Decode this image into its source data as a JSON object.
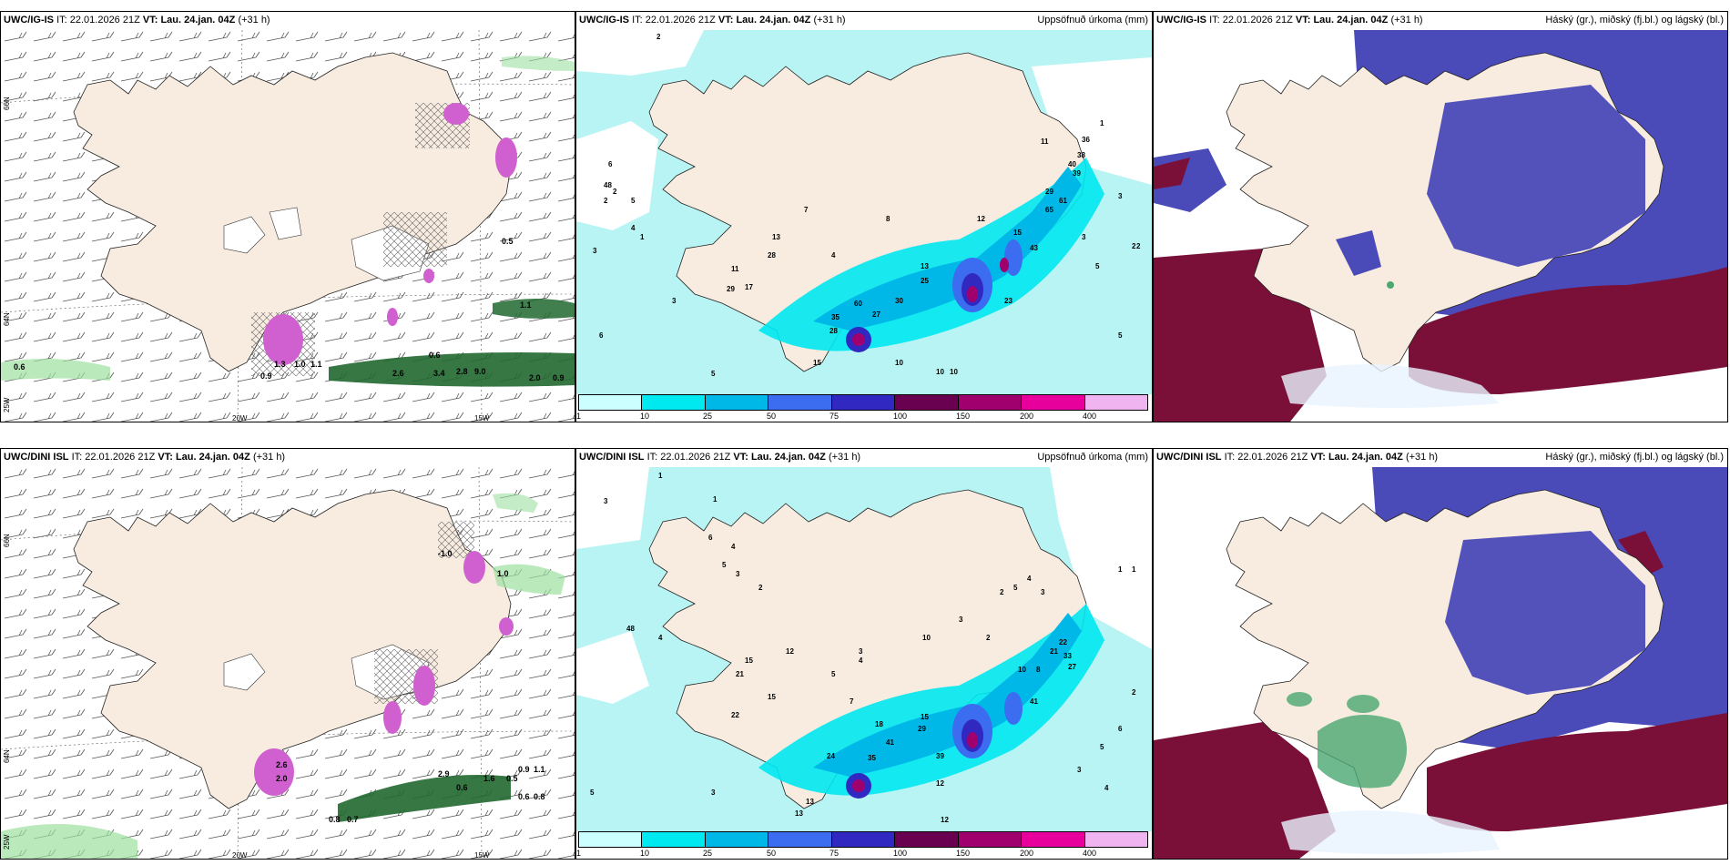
{
  "rows": [
    {
      "model": "UWC/IG-IS",
      "it_label": "IT:",
      "it_value": "22.01.2026 21Z",
      "vt_label": "VT:",
      "vt_value": "Lau. 24.jan. 04Z",
      "lead": "(+31 h)"
    },
    {
      "model": "UWC/DINI ISL",
      "it_label": "IT:",
      "it_value": "22.01.2026 21Z",
      "vt_label": "VT:",
      "vt_value": "Lau. 24.jan. 04Z",
      "lead": "(+31 h)"
    }
  ],
  "precip_title": "Uppsöfnuð úrkoma (mm)",
  "cloud_title": "Háský (gr.), miðský (fj.bl.) og lágský (bl.)",
  "axis_labels": {
    "lon_20w": "20W",
    "lon_15w": "15W",
    "lat_66n": "66N",
    "lat_64n": "64N",
    "lat_25w": "25W"
  },
  "colorbar": {
    "labels": [
      "1",
      "10",
      "25",
      "50",
      "75",
      "100",
      "150",
      "200",
      "400"
    ],
    "colors": [
      "#ccffff",
      "#00e8f0",
      "#00b8e8",
      "#3c6cf0",
      "#3028c0",
      "#6a0050",
      "#a0006e",
      "#e8009c",
      "#f0b4f0"
    ]
  },
  "colors": {
    "land": "#f8ece0",
    "sea_precip_light": "#b8f4f4",
    "sea_precip_cyan": "#00e8f0",
    "high_cloud": "#4a4ab8",
    "mid_cloud": "#7a1038",
    "low_cloud": "#4aa870",
    "snow_pink": "#d060d0",
    "rain_green": "#206830"
  },
  "panel1_values": {
    "top": [
      "0.6",
      "0.9",
      "0.6",
      "1.1",
      "0.5",
      "2.6",
      "3.4",
      "2.8",
      "9.0",
      "2.0",
      "0.9",
      "1.3",
      "1.1",
      "1.0"
    ],
    "bottom": [
      "-1.0",
      "1.0",
      "0.8",
      "0.6",
      "2.9",
      "0.9",
      "0.6",
      "1.6",
      "0.5",
      "1.1",
      "0.8",
      "0.7",
      "2.6",
      "2.0"
    ]
  },
  "panel2_values": {
    "top": [
      "2",
      "3",
      "2",
      "5",
      "2",
      "6",
      "48",
      "3",
      "4",
      "1",
      "3",
      "5",
      "13",
      "28",
      "29",
      "17",
      "11",
      "4",
      "7",
      "12",
      "8",
      "13",
      "25",
      "30",
      "27",
      "60",
      "35",
      "28",
      "23",
      "15",
      "10",
      "5",
      "6",
      "5",
      "3",
      "2",
      "3",
      "40",
      "43",
      "65",
      "61",
      "39",
      "38",
      "36",
      "29",
      "15",
      "11",
      "2",
      "1",
      "10",
      "10"
    ],
    "bottom": [
      "1",
      "3",
      "1",
      "4",
      "6",
      "5",
      "3",
      "2",
      "4",
      "48",
      "15",
      "21",
      "12",
      "22",
      "15",
      "5",
      "24",
      "13",
      "35",
      "41",
      "18",
      "29",
      "15",
      "39",
      "3",
      "4",
      "12",
      "7",
      "10",
      "3",
      "2",
      "5",
      "4",
      "3",
      "2",
      "22",
      "21",
      "33",
      "27",
      "10",
      "41",
      "8",
      "6",
      "5",
      "4",
      "3",
      "2",
      "1",
      "1",
      "5",
      "3",
      "13",
      "12"
    ]
  }
}
